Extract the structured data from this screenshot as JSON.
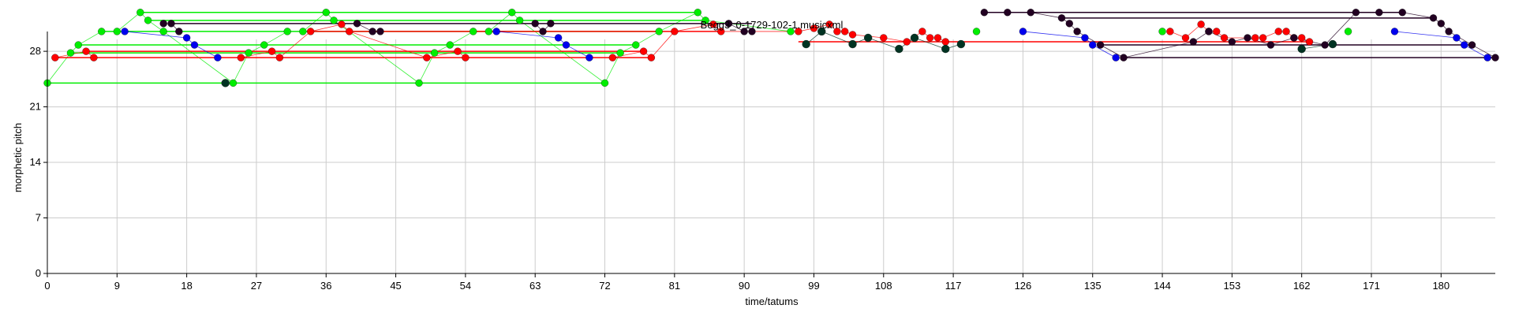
{
  "chart_data": {
    "type": "scatter",
    "title": "Begg3_0-1729-102-1.musicxml",
    "xlabel": "time/tatums",
    "ylabel": "morphetic pitch",
    "xlim": [
      0,
      187
    ],
    "ylim": [
      0,
      29.5
    ],
    "x_ticks": [
      0,
      9,
      18,
      27,
      36,
      45,
      54,
      63,
      72,
      81,
      90,
      99,
      108,
      117,
      126,
      135,
      144,
      153,
      162,
      171,
      180
    ],
    "y_ticks": [
      0,
      7,
      14,
      21,
      28
    ],
    "grid": true,
    "colors": {
      "green": "#00ee00",
      "red": "#ff0000",
      "blue": "#0000ee",
      "dark": "#220022",
      "darkgreen": "#003322",
      "mid_blue": "#2233cc",
      "axis": "#000000",
      "grid": "#cccccc"
    },
    "series": [
      {
        "color": "green",
        "points": [
          [
            0,
            24
          ],
          [
            3,
            27.8
          ],
          [
            4,
            28.8
          ],
          [
            7,
            30.5
          ],
          [
            9,
            30.5
          ],
          [
            12,
            32.9
          ],
          [
            13,
            31.9
          ],
          [
            15,
            30.5
          ],
          [
            24,
            24
          ],
          [
            26,
            27.8
          ],
          [
            28,
            28.8
          ],
          [
            31,
            30.5
          ],
          [
            33,
            30.5
          ],
          [
            36,
            32.9
          ],
          [
            37,
            31.9
          ],
          [
            48,
            24
          ],
          [
            50,
            27.8
          ],
          [
            52,
            28.8
          ],
          [
            55,
            30.5
          ],
          [
            57,
            30.5
          ],
          [
            60,
            32.9
          ],
          [
            61,
            31.9
          ],
          [
            72,
            24
          ],
          [
            74,
            27.8
          ],
          [
            76,
            28.8
          ],
          [
            79,
            30.5
          ],
          [
            84,
            32.9
          ],
          [
            85,
            31.9
          ],
          [
            96,
            30.5
          ],
          [
            120,
            30.5
          ],
          [
            144,
            30.5
          ],
          [
            168,
            30.5
          ]
        ],
        "lines": [
          [
            0,
            72,
            24
          ],
          [
            12,
            84,
            32.9
          ],
          [
            13,
            85,
            31.9
          ],
          [
            3,
            74,
            27.8
          ],
          [
            4,
            76,
            28.8
          ],
          [
            7,
            79,
            30.5
          ]
        ]
      },
      {
        "color": "red",
        "points": [
          [
            1,
            27.2
          ],
          [
            5,
            28
          ],
          [
            6,
            27.2
          ],
          [
            25,
            27.2
          ],
          [
            29,
            28
          ],
          [
            30,
            27.2
          ],
          [
            34,
            30.5
          ],
          [
            38,
            31.4
          ],
          [
            39,
            30.5
          ],
          [
            49,
            27.2
          ],
          [
            53,
            28
          ],
          [
            54,
            27.2
          ],
          [
            73,
            27.2
          ],
          [
            77,
            28
          ],
          [
            78,
            27.2
          ],
          [
            81,
            30.5
          ],
          [
            86,
            31.4
          ],
          [
            87,
            30.5
          ],
          [
            97,
            30.5
          ],
          [
            99,
            30.9
          ],
          [
            101,
            31.4
          ],
          [
            102,
            30.5
          ],
          [
            103,
            30.5
          ],
          [
            104,
            30.1
          ],
          [
            108,
            29.7
          ],
          [
            111,
            29.2
          ],
          [
            113,
            30.5
          ],
          [
            114,
            29.7
          ],
          [
            115,
            29.7
          ],
          [
            116,
            29.2
          ],
          [
            145,
            30.5
          ],
          [
            147,
            29.7
          ],
          [
            149,
            31.4
          ],
          [
            150,
            30.5
          ],
          [
            151,
            30.5
          ],
          [
            152,
            29.7
          ],
          [
            156,
            29.7
          ],
          [
            157,
            29.7
          ],
          [
            159,
            30.5
          ],
          [
            160,
            30.5
          ],
          [
            161,
            29.7
          ],
          [
            162,
            29.7
          ],
          [
            163,
            29.2
          ]
        ],
        "lines": [
          [
            1,
            78,
            27.2
          ],
          [
            5,
            77,
            28
          ],
          [
            34,
            87,
            30.5
          ],
          [
            97,
            163,
            29.2
          ]
        ]
      },
      {
        "color": "blue",
        "points": [
          [
            10,
            30.5
          ],
          [
            18,
            29.7
          ],
          [
            19,
            28.8
          ],
          [
            22,
            27.2
          ],
          [
            58,
            30.5
          ],
          [
            66,
            29.7
          ],
          [
            67,
            28.8
          ],
          [
            70,
            27.2
          ],
          [
            126,
            30.5
          ],
          [
            134,
            29.7
          ],
          [
            135,
            28.8
          ],
          [
            138,
            27.2
          ],
          [
            174,
            30.5
          ],
          [
            182,
            29.7
          ],
          [
            183,
            28.8
          ],
          [
            186,
            27.2
          ]
        ],
        "lines": []
      },
      {
        "color": "dark",
        "points": [
          [
            15,
            31.5
          ],
          [
            16,
            31.5
          ],
          [
            17,
            30.5
          ],
          [
            40,
            31.5
          ],
          [
            42,
            30.5
          ],
          [
            43,
            30.5
          ],
          [
            63,
            31.5
          ],
          [
            64,
            30.5
          ],
          [
            65,
            31.5
          ],
          [
            88,
            31.5
          ],
          [
            90,
            30.5
          ],
          [
            91,
            30.5
          ],
          [
            121,
            32.9
          ],
          [
            124,
            32.9
          ],
          [
            127,
            32.9
          ],
          [
            131,
            32.2
          ],
          [
            132,
            31.5
          ],
          [
            133,
            30.5
          ],
          [
            136,
            28.8
          ],
          [
            139,
            27.2
          ],
          [
            148,
            29.2
          ],
          [
            150,
            30.5
          ],
          [
            153,
            29.2
          ],
          [
            155,
            29.7
          ],
          [
            158,
            28.8
          ],
          [
            161,
            29.7
          ],
          [
            165,
            28.8
          ],
          [
            169,
            32.9
          ],
          [
            172,
            32.9
          ],
          [
            175,
            32.9
          ],
          [
            179,
            32.2
          ],
          [
            180,
            31.5
          ],
          [
            181,
            30.5
          ],
          [
            184,
            28.8
          ],
          [
            187,
            27.2
          ]
        ],
        "lines": [
          [
            16,
            91,
            31.5
          ],
          [
            121,
            175,
            32.9
          ],
          [
            131,
            179,
            32.2
          ],
          [
            136,
            184,
            28.8
          ],
          [
            139,
            187,
            27.2
          ]
        ]
      },
      {
        "color": "darkgreen",
        "points": [
          [
            98,
            28.9
          ],
          [
            100,
            30.5
          ],
          [
            104,
            28.9
          ],
          [
            106,
            29.7
          ],
          [
            110,
            28.3
          ],
          [
            112,
            29.7
          ],
          [
            116,
            28.3
          ],
          [
            118,
            28.9
          ],
          [
            162,
            28.3
          ],
          [
            166,
            28.9
          ],
          [
            23,
            24
          ]
        ],
        "lines": []
      }
    ]
  }
}
